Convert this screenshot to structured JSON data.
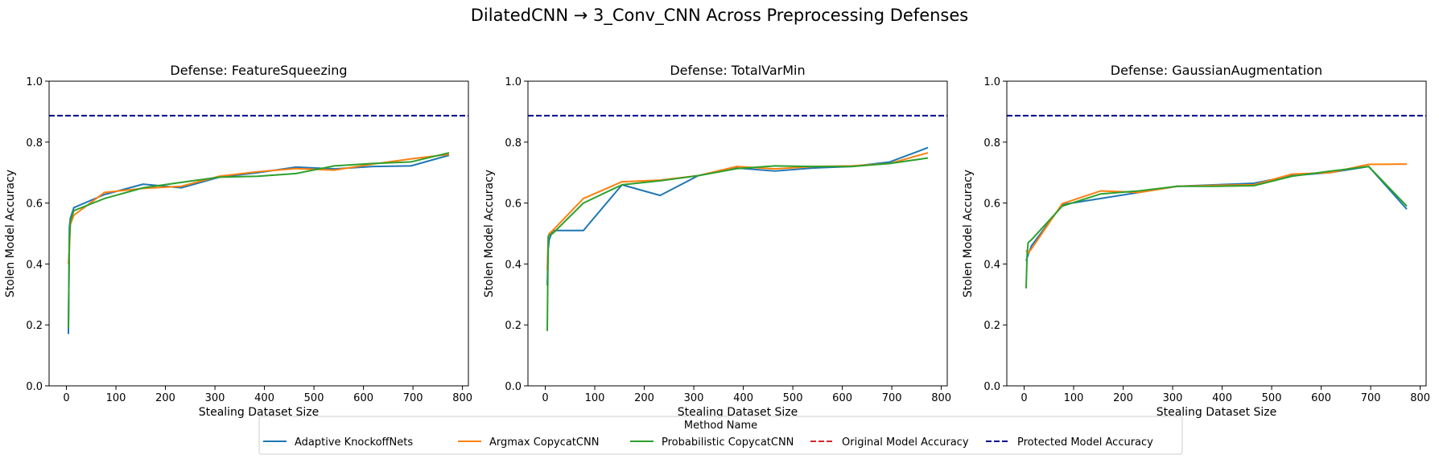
{
  "suptitle": "DilatedCNN → 3_Conv_CNN Across Preprocessing Defenses",
  "colors": {
    "adaptive": "#1f77b4",
    "argmax": "#ff7f0e",
    "probabilistic": "#2ca02c",
    "original": "#d62728",
    "protected": "#00008b"
  },
  "legend": {
    "title": "Method Name",
    "placement": "bottom-center",
    "entries": [
      {
        "label": "Adaptive KnockoffNets",
        "color": "#1f77b4",
        "style": "solid"
      },
      {
        "label": "Argmax CopycatCNN",
        "color": "#ff7f0e",
        "style": "solid"
      },
      {
        "label": "Probabilistic CopycatCNN",
        "color": "#2ca02c",
        "style": "solid"
      },
      {
        "label": "Original Model Accuracy",
        "color": "#d62728",
        "style": "dashed"
      },
      {
        "label": "Protected Model Accuracy",
        "color": "#00008b",
        "style": "dashed"
      }
    ]
  },
  "chart_data": [
    {
      "type": "line",
      "title": "Defense: FeatureSqueezing",
      "xlabel": "Stealing Dataset Size",
      "ylabel": "Stolen Model Accuracy",
      "xlim": [
        -35,
        812
      ],
      "ylim": [
        0.0,
        1.0
      ],
      "xticks": [
        0,
        100,
        200,
        300,
        400,
        500,
        600,
        700,
        800
      ],
      "yticks": [
        0.0,
        0.2,
        0.4,
        0.6,
        0.8,
        1.0
      ],
      "grid": false,
      "hlines": [
        {
          "name": "Protected Model Accuracy",
          "y": 0.887,
          "color": "#00008b"
        }
      ],
      "series": [
        {
          "name": "Adaptive KnockoffNets",
          "color": "#1f77b4",
          "points": [
            [
              4,
              0.17
            ],
            [
              6,
              0.52
            ],
            [
              8,
              0.55
            ],
            [
              15,
              0.585
            ],
            [
              77,
              0.628
            ],
            [
              155,
              0.662
            ],
            [
              232,
              0.65
            ],
            [
              309,
              0.685
            ],
            [
              387,
              0.7
            ],
            [
              464,
              0.718
            ],
            [
              541,
              0.712
            ],
            [
              619,
              0.72
            ],
            [
              696,
              0.722
            ],
            [
              773,
              0.757
            ]
          ]
        },
        {
          "name": "Argmax CopycatCNN",
          "color": "#ff7f0e",
          "points": [
            [
              4,
              0.4
            ],
            [
              6,
              0.45
            ],
            [
              8,
              0.53
            ],
            [
              15,
              0.56
            ],
            [
              77,
              0.635
            ],
            [
              155,
              0.648
            ],
            [
              232,
              0.655
            ],
            [
              309,
              0.688
            ],
            [
              387,
              0.703
            ],
            [
              464,
              0.713
            ],
            [
              541,
              0.708
            ],
            [
              619,
              0.728
            ],
            [
              696,
              0.745
            ],
            [
              773,
              0.76
            ]
          ]
        },
        {
          "name": "Probabilistic CopycatCNN",
          "color": "#2ca02c",
          "points": [
            [
              4,
              0.19
            ],
            [
              6,
              0.48
            ],
            [
              8,
              0.54
            ],
            [
              15,
              0.575
            ],
            [
              77,
              0.615
            ],
            [
              155,
              0.65
            ],
            [
              232,
              0.668
            ],
            [
              309,
              0.685
            ],
            [
              387,
              0.688
            ],
            [
              464,
              0.697
            ],
            [
              541,
              0.722
            ],
            [
              619,
              0.73
            ],
            [
              696,
              0.735
            ],
            [
              773,
              0.765
            ]
          ]
        }
      ]
    },
    {
      "type": "line",
      "title": "Defense: TotalVarMin",
      "xlabel": "Stealing Dataset Size",
      "ylabel": "Stolen Model Accuracy",
      "xlim": [
        -35,
        812
      ],
      "ylim": [
        0.0,
        1.0
      ],
      "xticks": [
        0,
        100,
        200,
        300,
        400,
        500,
        600,
        700,
        800
      ],
      "yticks": [
        0.0,
        0.2,
        0.4,
        0.6,
        0.8,
        1.0
      ],
      "grid": false,
      "hlines": [
        {
          "name": "Protected Model Accuracy",
          "y": 0.887,
          "color": "#00008b"
        }
      ],
      "series": [
        {
          "name": "Adaptive KnockoffNets",
          "color": "#1f77b4",
          "points": [
            [
              4,
              0.33
            ],
            [
              6,
              0.45
            ],
            [
              8,
              0.48
            ],
            [
              15,
              0.51
            ],
            [
              77,
              0.51
            ],
            [
              155,
              0.66
            ],
            [
              232,
              0.625
            ],
            [
              309,
              0.69
            ],
            [
              387,
              0.715
            ],
            [
              464,
              0.705
            ],
            [
              541,
              0.715
            ],
            [
              619,
              0.72
            ],
            [
              696,
              0.735
            ],
            [
              773,
              0.782
            ]
          ]
        },
        {
          "name": "Argmax CopycatCNN",
          "color": "#ff7f0e",
          "points": [
            [
              4,
              0.38
            ],
            [
              6,
              0.49
            ],
            [
              8,
              0.5
            ],
            [
              15,
              0.51
            ],
            [
              77,
              0.615
            ],
            [
              155,
              0.67
            ],
            [
              232,
              0.675
            ],
            [
              309,
              0.69
            ],
            [
              387,
              0.72
            ],
            [
              464,
              0.712
            ],
            [
              541,
              0.72
            ],
            [
              619,
              0.722
            ],
            [
              696,
              0.73
            ],
            [
              773,
              0.765
            ]
          ]
        },
        {
          "name": "Probabilistic CopycatCNN",
          "color": "#2ca02c",
          "points": [
            [
              4,
              0.18
            ],
            [
              6,
              0.49
            ],
            [
              8,
              0.495
            ],
            [
              15,
              0.5
            ],
            [
              77,
              0.6
            ],
            [
              155,
              0.66
            ],
            [
              232,
              0.673
            ],
            [
              309,
              0.69
            ],
            [
              387,
              0.713
            ],
            [
              464,
              0.722
            ],
            [
              541,
              0.72
            ],
            [
              619,
              0.72
            ],
            [
              696,
              0.73
            ],
            [
              773,
              0.748
            ]
          ]
        }
      ]
    },
    {
      "type": "line",
      "title": "Defense: GaussianAugmentation",
      "xlabel": "Stealing Dataset Size",
      "ylabel": "Stolen Model Accuracy",
      "xlim": [
        -35,
        812
      ],
      "ylim": [
        0.0,
        1.0
      ],
      "xticks": [
        0,
        100,
        200,
        300,
        400,
        500,
        600,
        700,
        800
      ],
      "yticks": [
        0.0,
        0.2,
        0.4,
        0.6,
        0.8,
        1.0
      ],
      "grid": false,
      "hlines": [
        {
          "name": "Protected Model Accuracy",
          "y": 0.887,
          "color": "#00008b"
        }
      ],
      "series": [
        {
          "name": "Adaptive KnockoffNets",
          "color": "#1f77b4",
          "points": [
            [
              4,
              0.41
            ],
            [
              8,
              0.43
            ],
            [
              15,
              0.46
            ],
            [
              77,
              0.595
            ],
            [
              155,
              0.615
            ],
            [
              232,
              0.635
            ],
            [
              309,
              0.655
            ],
            [
              387,
              0.66
            ],
            [
              464,
              0.665
            ],
            [
              541,
              0.69
            ],
            [
              619,
              0.7
            ],
            [
              696,
              0.72
            ],
            [
              773,
              0.58
            ]
          ]
        },
        {
          "name": "Argmax CopycatCNN",
          "color": "#ff7f0e",
          "points": [
            [
              4,
              0.445
            ],
            [
              8,
              0.435
            ],
            [
              15,
              0.45
            ],
            [
              77,
              0.598
            ],
            [
              155,
              0.64
            ],
            [
              232,
              0.635
            ],
            [
              309,
              0.655
            ],
            [
              387,
              0.658
            ],
            [
              464,
              0.66
            ],
            [
              541,
              0.695
            ],
            [
              619,
              0.7
            ],
            [
              696,
              0.727
            ],
            [
              773,
              0.728
            ]
          ]
        },
        {
          "name": "Probabilistic CopycatCNN",
          "color": "#2ca02c",
          "points": [
            [
              4,
              0.32
            ],
            [
              6,
              0.43
            ],
            [
              8,
              0.47
            ],
            [
              15,
              0.48
            ],
            [
              77,
              0.59
            ],
            [
              155,
              0.63
            ],
            [
              232,
              0.64
            ],
            [
              309,
              0.655
            ],
            [
              387,
              0.655
            ],
            [
              464,
              0.657
            ],
            [
              541,
              0.688
            ],
            [
              619,
              0.705
            ],
            [
              696,
              0.72
            ],
            [
              773,
              0.59
            ]
          ]
        }
      ]
    }
  ]
}
